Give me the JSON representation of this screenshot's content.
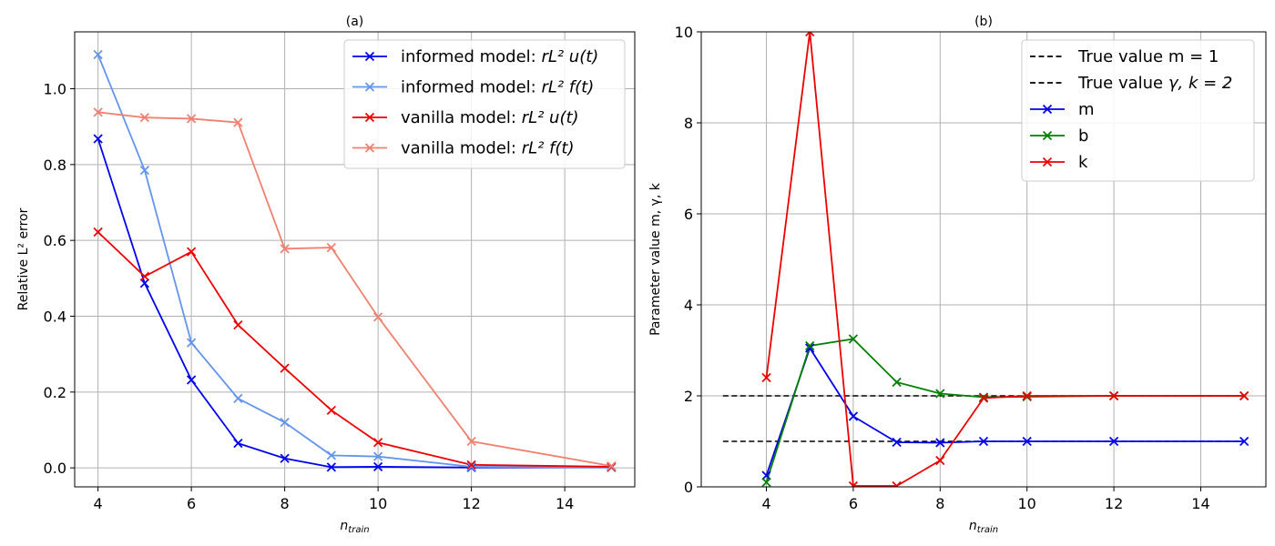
{
  "chart_data": [
    {
      "type": "line",
      "title": "(a)",
      "xlabel": "n_train",
      "ylabel": "Relative L² error",
      "xlim": [
        3.5,
        15.5
      ],
      "ylim": [
        -0.05,
        1.15
      ],
      "xticks": [
        4,
        6,
        8,
        10,
        12,
        14
      ],
      "yticks": [
        0.0,
        0.2,
        0.4,
        0.6,
        0.8,
        1.0
      ],
      "ytick_labels": [
        "0.0",
        "0.2",
        "0.4",
        "0.6",
        "0.8",
        "1.0"
      ],
      "grid": true,
      "legend_position": "top-right",
      "x": [
        4,
        5,
        6,
        7,
        8,
        9,
        10,
        12,
        15
      ],
      "series": [
        {
          "name": "informed model: rL² u(t)",
          "name_main": "informed model: ",
          "name_math": "rL² u(t)",
          "color": "#0000ee",
          "marker": "x",
          "values": [
            0.868,
            0.487,
            0.232,
            0.065,
            0.025,
            0.002,
            0.003,
            0.001,
            0.001
          ]
        },
        {
          "name": "informed model: rL² f(t)",
          "name_main": "informed model: ",
          "name_math": "rL² f(t)",
          "color": "#6495ed",
          "marker": "x",
          "values": [
            1.09,
            0.785,
            0.33,
            0.183,
            0.12,
            0.033,
            0.03,
            0.003,
            0.001
          ]
        },
        {
          "name": "vanilla model: rL² u(t)",
          "name_main": "vanilla model: ",
          "name_math": "rL² u(t)",
          "color": "#ee0000",
          "marker": "x",
          "values": [
            0.622,
            0.505,
            0.57,
            0.377,
            0.263,
            0.152,
            0.067,
            0.008,
            0.003
          ]
        },
        {
          "name": "vanilla model: rL² f(t)",
          "name_main": "vanilla model: ",
          "name_math": "rL² f(t)",
          "color": "#f08070",
          "marker": "x",
          "values": [
            0.938,
            0.924,
            0.921,
            0.911,
            0.578,
            0.581,
            0.398,
            0.07,
            0.005
          ]
        }
      ]
    },
    {
      "type": "line",
      "title": "(b)",
      "xlabel": "n_train",
      "ylabel": "Parameter value m, γ, k",
      "xlim": [
        2.5,
        15.5
      ],
      "ylim": [
        0,
        10
      ],
      "xticks": [
        4,
        6,
        8,
        10,
        12,
        14
      ],
      "yticks": [
        0,
        2,
        4,
        6,
        8,
        10
      ],
      "ytick_labels": [
        "0",
        "2",
        "4",
        "6",
        "8",
        "10"
      ],
      "grid": true,
      "legend_position": "top-right",
      "reference_lines": [
        {
          "name": "True value m = 1",
          "name_main": "True value m = 1",
          "name_math": "",
          "value": 1,
          "x_range": [
            3,
            15
          ],
          "color": "#000000",
          "style": "dashed"
        },
        {
          "name": "True value γ, k = 2",
          "name_main": "True value ",
          "name_math": "γ, k = 2",
          "value": 2,
          "x_range": [
            3,
            15
          ],
          "color": "#000000",
          "style": "dashed"
        }
      ],
      "x": [
        4,
        5,
        6,
        7,
        8,
        9,
        10,
        12,
        15
      ],
      "series": [
        {
          "name": "m",
          "name_main": "m",
          "name_math": "",
          "color": "#0000ee",
          "marker": "x",
          "values": [
            0.25,
            3.05,
            1.55,
            0.98,
            0.97,
            1.0,
            1.0,
            1.0,
            1.0
          ]
        },
        {
          "name": "b",
          "name_main": "b",
          "name_math": "",
          "color": "#008000",
          "marker": "x",
          "values": [
            0.1,
            3.1,
            3.25,
            2.3,
            2.05,
            1.97,
            1.98,
            2.0,
            2.0
          ]
        },
        {
          "name": "k",
          "name_main": "k",
          "name_math": "",
          "color": "#ee0000",
          "marker": "x",
          "values": [
            2.4,
            10.0,
            0.02,
            0.02,
            0.58,
            1.95,
            2.0,
            2.0,
            2.0
          ]
        }
      ]
    }
  ]
}
